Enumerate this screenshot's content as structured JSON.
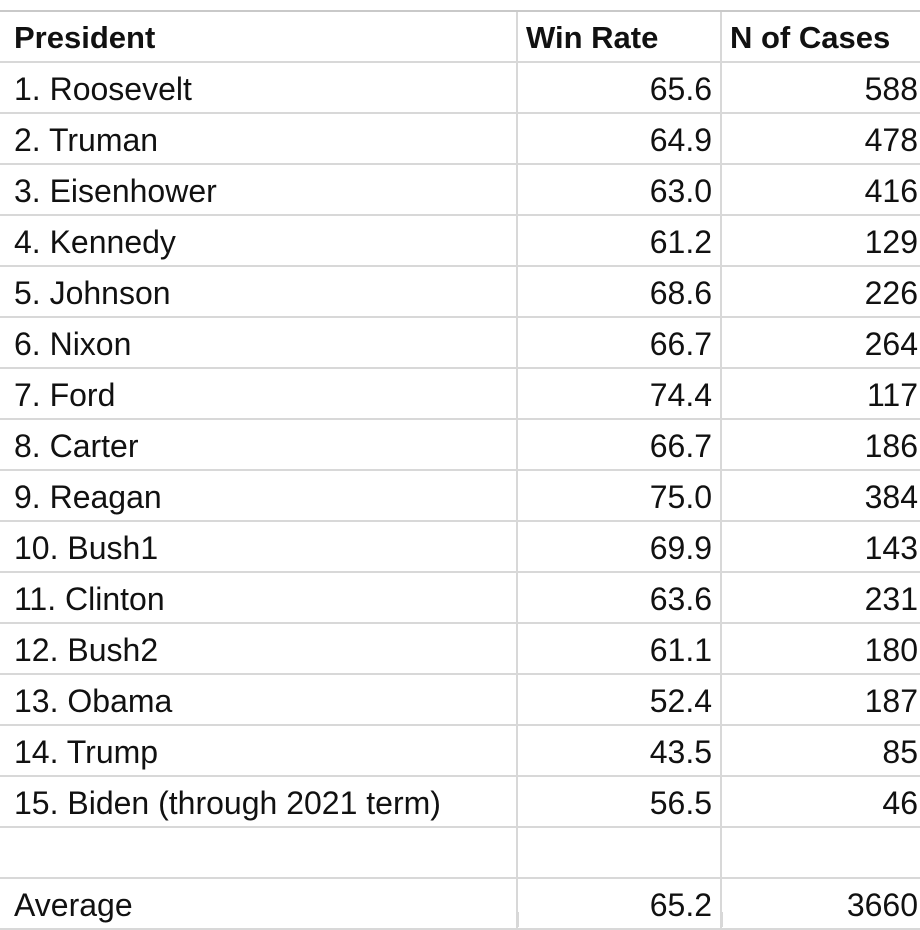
{
  "table": {
    "headers": [
      "President",
      "Win Rate",
      "N of Cases"
    ],
    "rows": [
      [
        "1. Roosevelt",
        "65.6",
        "588"
      ],
      [
        "2. Truman",
        "64.9",
        "478"
      ],
      [
        "3. Eisenhower",
        "63.0",
        "416"
      ],
      [
        "4. Kennedy",
        "61.2",
        "129"
      ],
      [
        "5. Johnson",
        "68.6",
        "226"
      ],
      [
        "6. Nixon",
        "66.7",
        "264"
      ],
      [
        "7. Ford",
        "74.4",
        "117"
      ],
      [
        "8. Carter",
        "66.7",
        "186"
      ],
      [
        "9. Reagan",
        "75.0",
        "384"
      ],
      [
        "10. Bush1",
        "69.9",
        "143"
      ],
      [
        "11. Clinton",
        "63.6",
        "231"
      ],
      [
        "12. Bush2",
        "61.1",
        "180"
      ],
      [
        "13. Obama",
        "52.4",
        "187"
      ],
      [
        "14. Trump",
        "43.5",
        "85"
      ],
      [
        "15. Biden (through 2021 term)",
        "56.5",
        "46"
      ],
      [
        "",
        "",
        ""
      ],
      [
        "Average",
        "65.2",
        "3660"
      ]
    ]
  }
}
